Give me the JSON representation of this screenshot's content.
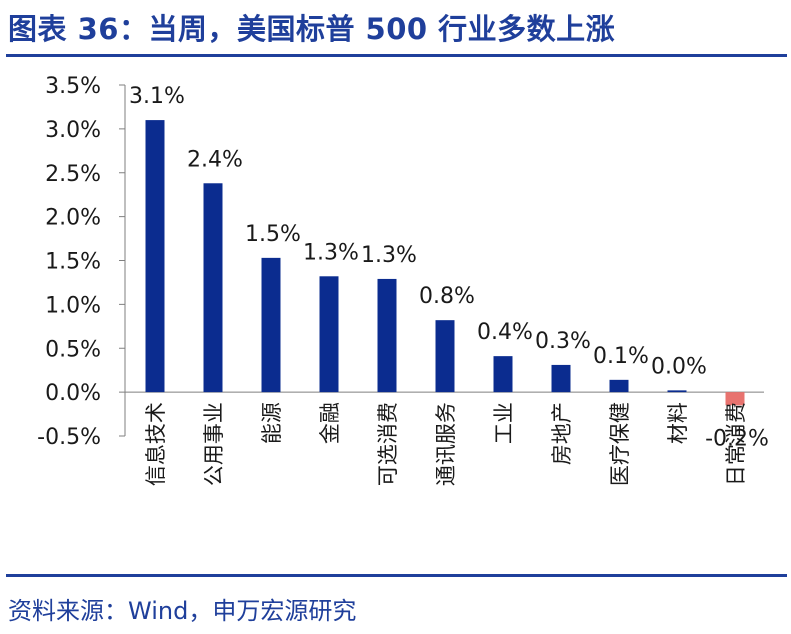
{
  "header": {
    "title": "图表 36：当周，美国标普 500 行业多数上涨"
  },
  "footer": {
    "source": "资料来源：Wind，申万宏源研究"
  },
  "chart_data": {
    "type": "bar",
    "categories": [
      "信息技术",
      "公用事业",
      "能源",
      "金融",
      "可选消费",
      "通讯服务",
      "工业",
      "房地产",
      "医疗保健",
      "材料",
      "日常消费"
    ],
    "values": [
      3.1,
      2.4,
      1.5,
      1.3,
      1.3,
      0.8,
      0.4,
      0.3,
      0.1,
      0.0,
      -0.2
    ],
    "data_labels": [
      "3.1%",
      "2.4%",
      "1.5%",
      "1.3%",
      "1.3%",
      "0.8%",
      "0.4%",
      "0.3%",
      "0.1%",
      "0.0%",
      "-0.2%"
    ],
    "bar_values": [
      3.1,
      2.38,
      1.53,
      1.32,
      1.29,
      0.82,
      0.41,
      0.31,
      0.14,
      0.02,
      -0.15
    ],
    "yticks": [
      "3.5%",
      "3.0%",
      "2.5%",
      "2.0%",
      "1.5%",
      "1.0%",
      "0.5%",
      "0.0%",
      "-0.5%"
    ],
    "ylim": [
      -0.5,
      3.5
    ],
    "grid": false,
    "colors": {
      "positive": "#0b2c8f",
      "negative": "#e8736f",
      "axis": "#7f7f7f",
      "text": "#1a1a1a"
    }
  }
}
